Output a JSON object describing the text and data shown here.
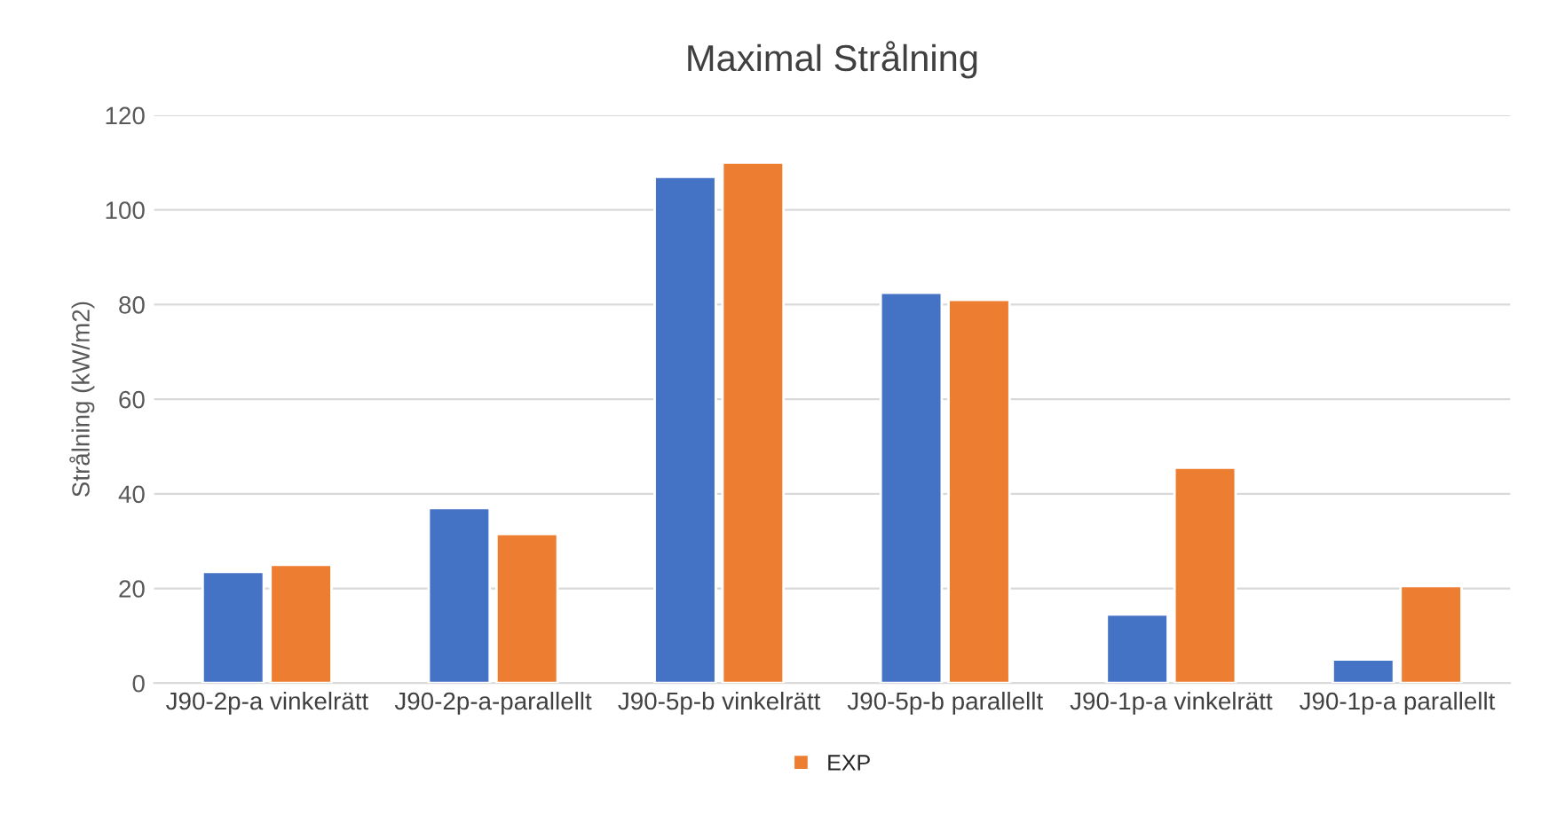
{
  "chart_data": {
    "type": "bar",
    "title": "Maximal Strålning",
    "ylabel": "Strålning (kW/m2)",
    "categories": [
      "J90-2p-a vinkelrätt",
      "J90-2p-a-parallellt",
      "J90-5p-b vinkelrätt",
      "J90-5p-b parallellt",
      "J90-1p-a vinkelrätt",
      "J90-1p-a parallellt"
    ],
    "series": [
      {
        "color": "#4472c4",
        "values": [
          23.5,
          37,
          107,
          82.5,
          14.5,
          5
        ]
      },
      {
        "name": "EXP",
        "color": "#ed7d31",
        "values": [
          25,
          31.5,
          110,
          81,
          45.5,
          20.5
        ]
      }
    ],
    "ylim": [
      0,
      120
    ],
    "yticks": [
      0,
      20,
      40,
      60,
      80,
      100,
      120
    ],
    "grid": "y",
    "legend": "bottom"
  }
}
